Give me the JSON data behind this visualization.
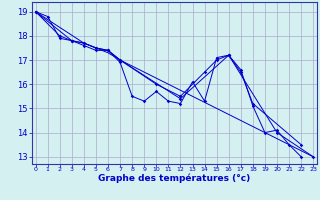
{
  "xlabel": "Graphe des températures (°c)",
  "background_color": "#d4f0f0",
  "grid_color": "#aaaacc",
  "line_color": "#0000cc",
  "x_ticks": [
    0,
    1,
    2,
    3,
    4,
    5,
    6,
    7,
    8,
    9,
    10,
    11,
    12,
    13,
    14,
    15,
    16,
    17,
    18,
    19,
    20,
    21,
    22,
    23
  ],
  "y_ticks": [
    13,
    14,
    15,
    16,
    17,
    18,
    19
  ],
  "xlim": [
    -0.3,
    23.3
  ],
  "ylim": [
    12.7,
    19.4
  ],
  "series": [
    [
      19.0,
      18.8,
      17.9,
      17.8,
      17.7,
      17.5,
      17.4,
      16.9,
      15.5,
      15.3,
      15.7,
      15.3,
      15.2,
      16.1,
      15.3,
      17.1,
      17.2,
      16.6,
      15.1,
      14.0,
      14.1,
      13.5,
      13.0,
      null
    ],
    [
      19.0,
      null,
      18.0,
      17.8,
      17.6,
      17.4,
      17.4,
      17.0,
      null,
      null,
      16.0,
      null,
      15.5,
      null,
      16.5,
      17.0,
      17.2,
      null,
      null,
      null,
      14.0,
      null,
      null,
      13.0
    ],
    [
      19.0,
      null,
      null,
      17.8,
      17.7,
      17.5,
      17.4,
      17.0,
      null,
      null,
      null,
      null,
      15.4,
      null,
      null,
      null,
      17.2,
      16.5,
      15.2,
      null,
      null,
      null,
      13.5,
      null
    ],
    [
      19.0,
      null,
      null,
      null,
      17.7,
      17.5,
      17.3,
      17.0,
      null,
      null,
      null,
      null,
      null,
      null,
      null,
      null,
      null,
      null,
      null,
      null,
      null,
      null,
      null,
      13.0
    ]
  ]
}
